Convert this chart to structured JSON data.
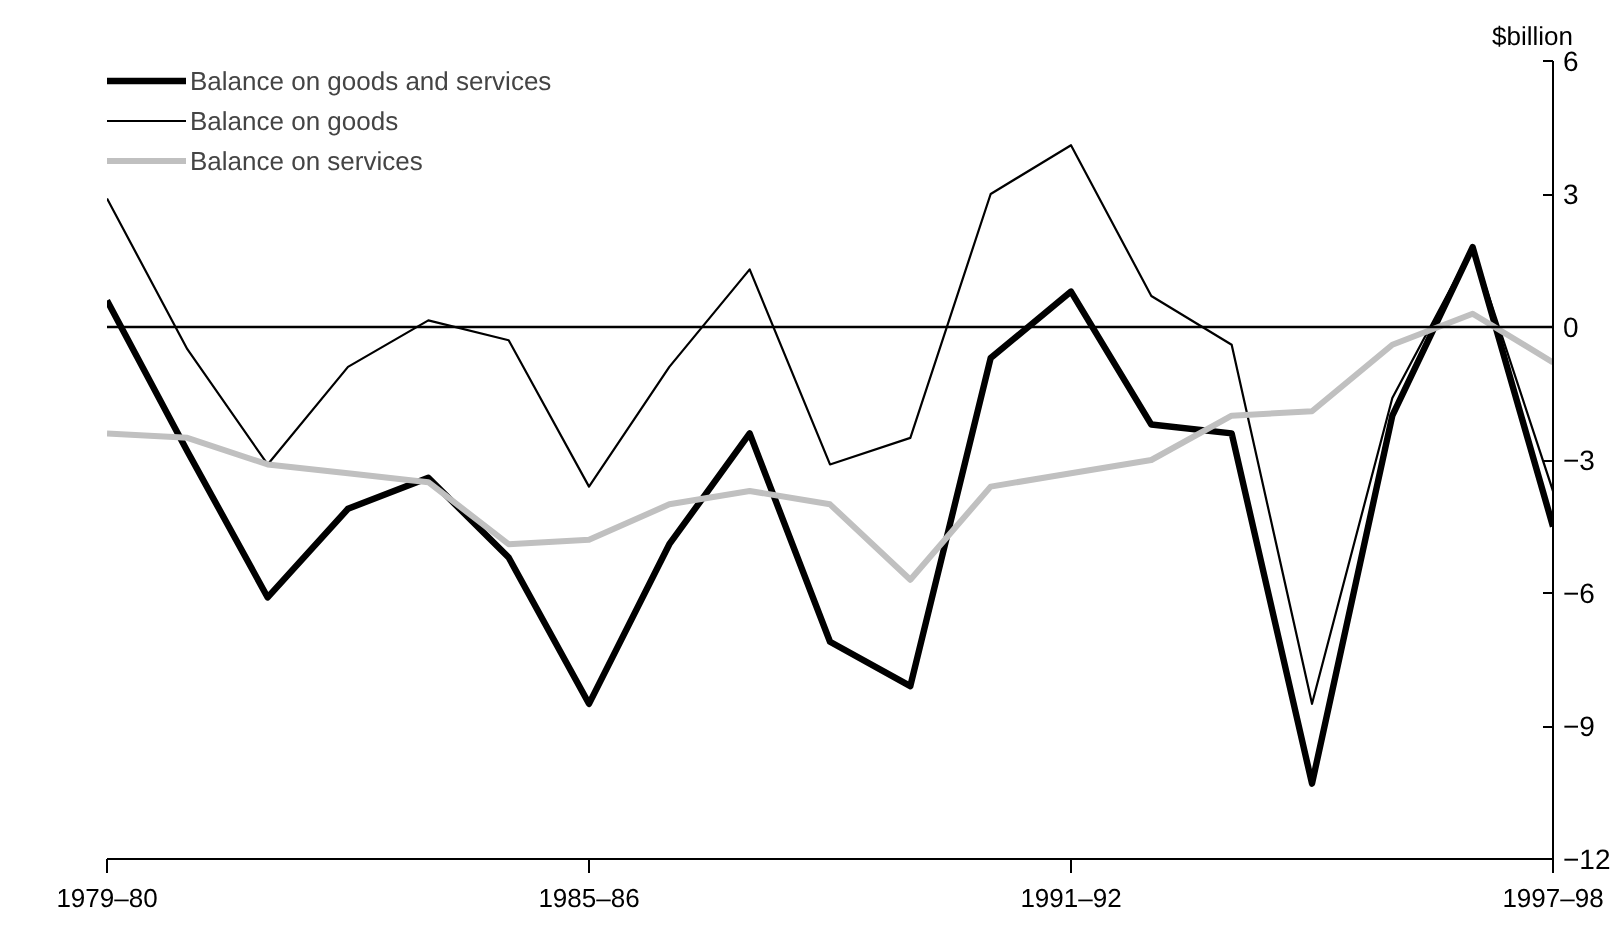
{
  "chart_data": {
    "type": "line",
    "ylabel": "$billion",
    "categories": [
      "1979–80",
      null,
      null,
      null,
      null,
      null,
      "1985–86",
      null,
      null,
      null,
      null,
      null,
      "1991–92",
      null,
      null,
      null,
      null,
      null,
      "1997–98"
    ],
    "series": [
      {
        "name": "Balance on goods and services",
        "color": "#000000",
        "values": [
          0.6,
          -2.8,
          -6.1,
          -4.1,
          -3.4,
          -5.2,
          -8.5,
          -4.9,
          -2.4,
          -7.1,
          -8.1,
          -0.7,
          0.8,
          -2.2,
          -2.4,
          -10.3,
          -2.0,
          1.8,
          -4.5
        ]
      },
      {
        "name": "Balance on goods",
        "color": "#000000",
        "values": [
          2.9,
          -0.5,
          -3.1,
          -0.9,
          0.15,
          -0.3,
          -3.6,
          -0.9,
          1.3,
          -3.1,
          -2.5,
          3.0,
          4.1,
          0.7,
          -0.4,
          -8.5,
          -1.6,
          1.8,
          -3.7
        ]
      },
      {
        "name": "Balance on services",
        "color": "#c0c0c0",
        "values": [
          -2.4,
          -2.5,
          -3.1,
          -3.3,
          -3.5,
          -4.9,
          -4.8,
          -4.0,
          -3.7,
          -4.0,
          -5.7,
          -3.6,
          -3.3,
          -3.0,
          -2.0,
          -1.9,
          -0.4,
          0.3,
          -0.8
        ]
      }
    ],
    "ylim": [
      -12,
      6
    ],
    "yticks": [
      {
        "value": -12,
        "label": "−12"
      },
      {
        "value": -9,
        "label": "−9"
      },
      {
        "value": -6,
        "label": "−6"
      },
      {
        "value": -3,
        "label": "−3"
      },
      0,
      3,
      6
    ],
    "ref_lines": [
      {
        "axis": "y",
        "value": 0,
        "color": "#000000"
      }
    ],
    "grid": false,
    "legend": "top left",
    "marker": "none",
    "line_style": "solid"
  }
}
